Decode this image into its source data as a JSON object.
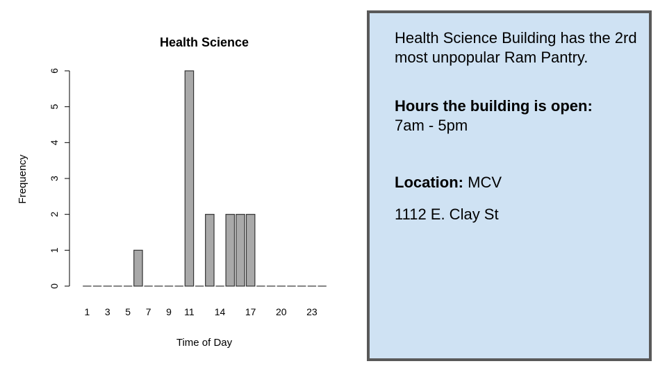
{
  "chart_data": {
    "type": "bar",
    "title": "Health Science",
    "xlabel": "Time of Day",
    "ylabel": "Frequency",
    "categories": [
      "1",
      "2",
      "3",
      "4",
      "5",
      "6",
      "7",
      "8",
      "9",
      "10",
      "11",
      "12",
      "13",
      "14",
      "15",
      "16",
      "17",
      "18",
      "19",
      "20",
      "21",
      "22",
      "23",
      "24"
    ],
    "values": [
      0,
      0,
      0,
      0,
      0,
      1,
      0,
      0,
      0,
      0,
      6,
      0,
      2,
      0,
      2,
      2,
      2,
      0,
      0,
      0,
      0,
      0,
      0,
      0
    ],
    "x_tick_labels": [
      "1",
      "3",
      "5",
      "7",
      "9",
      "11",
      "14",
      "17",
      "20",
      "23"
    ],
    "y_ticks": [
      0,
      1,
      2,
      3,
      4,
      5,
      6
    ],
    "ylim": [
      0,
      6
    ],
    "bar_color": "#a9a9a9",
    "grid": false
  },
  "info": {
    "intro": "Health Science Building has the 2rd most unpopular Ram Pantry.",
    "hours_label": "Hours the building is open:",
    "hours_value": "7am - 5pm",
    "location_label": "Location:",
    "location_value": "MCV",
    "address": "1112 E. Clay St"
  },
  "colors": {
    "info_background": "#cfe2f3",
    "info_border": "#595959"
  }
}
